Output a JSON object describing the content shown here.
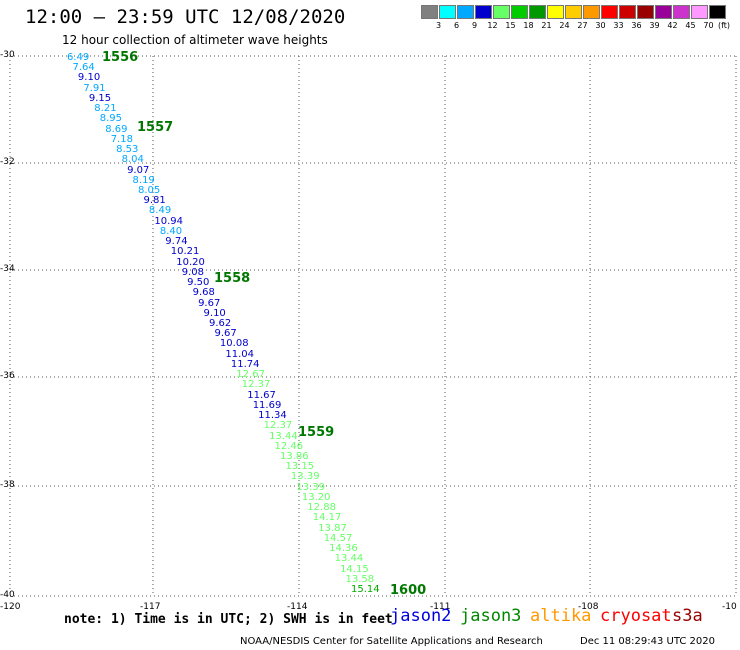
{
  "header": {
    "title": "12:00 – 23:59 UTC 12/08/2020",
    "subtitle": "12 hour collection of altimeter wave heights"
  },
  "color_scale": {
    "unit": "(ft)",
    "bins": [
      {
        "label": "",
        "color": "#808080"
      },
      {
        "label": "3",
        "color": "#00ffff"
      },
      {
        "label": "6",
        "color": "#00a8ff"
      },
      {
        "label": "9",
        "color": "#0000cc"
      },
      {
        "label": "12",
        "color": "#66ff66"
      },
      {
        "label": "15",
        "color": "#00cc00"
      },
      {
        "label": "18",
        "color": "#009900"
      },
      {
        "label": "21",
        "color": "#ffff00"
      },
      {
        "label": "24",
        "color": "#ffcc00"
      },
      {
        "label": "27",
        "color": "#ff9900"
      },
      {
        "label": "30",
        "color": "#ff0000"
      },
      {
        "label": "33",
        "color": "#cc0000"
      },
      {
        "label": "36",
        "color": "#990000"
      },
      {
        "label": "39",
        "color": "#990099"
      },
      {
        "label": "42",
        "color": "#cc33cc"
      },
      {
        "label": "45",
        "color": "#ff99ff"
      },
      {
        "label": "70",
        "color": "#000000"
      }
    ]
  },
  "axes": {
    "lat_labels": [
      "-30",
      "-32",
      "-34",
      "-36",
      "-38",
      "-40"
    ],
    "lon_labels": [
      "-120",
      "-117",
      "-114",
      "-111",
      "-108",
      "-10"
    ]
  },
  "measurements": [
    {
      "v": "6.49",
      "c": "#00a8ff"
    },
    {
      "v": "7.64",
      "c": "#00a8ff"
    },
    {
      "v": "9.10",
      "c": "#0000cc"
    },
    {
      "v": "7.91",
      "c": "#00a8ff"
    },
    {
      "v": "9.15",
      "c": "#0000cc"
    },
    {
      "v": "8.21",
      "c": "#00a8ff"
    },
    {
      "v": "8.95",
      "c": "#00a8ff"
    },
    {
      "v": "8.69",
      "c": "#00a8ff"
    },
    {
      "v": "7.18",
      "c": "#00a8ff"
    },
    {
      "v": "8.53",
      "c": "#00a8ff"
    },
    {
      "v": "8.04",
      "c": "#00a8ff"
    },
    {
      "v": "9.07",
      "c": "#0000cc"
    },
    {
      "v": "8.19",
      "c": "#00a8ff"
    },
    {
      "v": "8.05",
      "c": "#00a8ff"
    },
    {
      "v": "9.81",
      "c": "#0000cc"
    },
    {
      "v": "8.49",
      "c": "#00a8ff"
    },
    {
      "v": "10.94",
      "c": "#0000cc"
    },
    {
      "v": "8.40",
      "c": "#00a8ff"
    },
    {
      "v": "9.74",
      "c": "#0000cc"
    },
    {
      "v": "10.21",
      "c": "#0000cc"
    },
    {
      "v": "10.20",
      "c": "#0000cc"
    },
    {
      "v": "9.08",
      "c": "#0000cc"
    },
    {
      "v": "9.50",
      "c": "#0000cc"
    },
    {
      "v": "9.68",
      "c": "#0000cc"
    },
    {
      "v": "9.67",
      "c": "#0000cc"
    },
    {
      "v": "9.10",
      "c": "#0000cc"
    },
    {
      "v": "9.62",
      "c": "#0000cc"
    },
    {
      "v": "9.67",
      "c": "#0000cc"
    },
    {
      "v": "10.08",
      "c": "#0000cc"
    },
    {
      "v": "11.04",
      "c": "#0000cc"
    },
    {
      "v": "11.74",
      "c": "#0000cc"
    },
    {
      "v": "12.67",
      "c": "#66ff66"
    },
    {
      "v": "12.37",
      "c": "#66ff66"
    },
    {
      "v": "11.67",
      "c": "#0000cc"
    },
    {
      "v": "11.69",
      "c": "#0000cc"
    },
    {
      "v": "11.34",
      "c": "#0000cc"
    },
    {
      "v": "12.37",
      "c": "#66ff66"
    },
    {
      "v": "13.44",
      "c": "#66ff66"
    },
    {
      "v": "12.46",
      "c": "#66ff66"
    },
    {
      "v": "13.86",
      "c": "#66ff66"
    },
    {
      "v": "13.15",
      "c": "#66ff66"
    },
    {
      "v": "13.39",
      "c": "#66ff66"
    },
    {
      "v": "13.39",
      "c": "#66ff66"
    },
    {
      "v": "13.20",
      "c": "#66ff66"
    },
    {
      "v": "12.88",
      "c": "#66ff66"
    },
    {
      "v": "14.17",
      "c": "#66ff66"
    },
    {
      "v": "13.87",
      "c": "#66ff66"
    },
    {
      "v": "14.57",
      "c": "#66ff66"
    },
    {
      "v": "14.36",
      "c": "#66ff66"
    },
    {
      "v": "13.44",
      "c": "#66ff66"
    },
    {
      "v": "14.15",
      "c": "#66ff66"
    },
    {
      "v": "13.58",
      "c": "#66ff66"
    },
    {
      "v": "15.14",
      "c": "#00aa00"
    }
  ],
  "pass_times": [
    "1556",
    "1557",
    "1558",
    "1559",
    "1600"
  ],
  "note": "note: 1) Time is in UTC; 2) SWH is in feet",
  "satellites": [
    {
      "name": "jason2",
      "color": "#0000dd"
    },
    {
      "name": "jason3",
      "color": "#008800"
    },
    {
      "name": "altika",
      "color": "#ff9900"
    },
    {
      "name": "cryosat",
      "color": "#ff0000"
    },
    {
      "name": "s3a",
      "color": "#990000"
    }
  ],
  "footer": {
    "credit": "NOAA/NESDIS Center for Satellite Applications and Research",
    "timestamp": "Dec 11 08:29:43 UTC 2020"
  }
}
